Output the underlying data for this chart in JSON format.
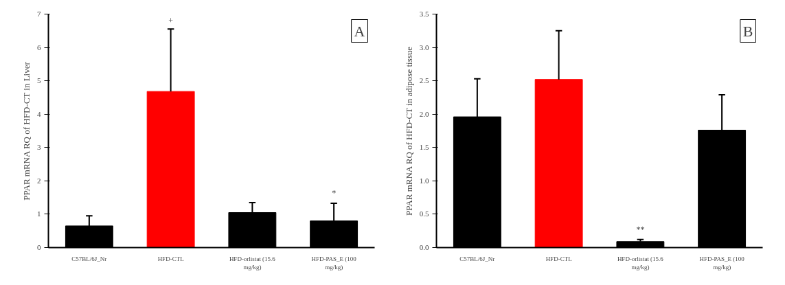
{
  "chart_data": [
    {
      "type": "bar",
      "categories": [
        "C57BL/6J_Nr",
        "HFD-CTL",
        "HFD-orlistat (15.6 mg/kg)",
        "HFD-PAS_E (100 mg/kg)"
      ],
      "values": [
        0.65,
        4.68,
        1.05,
        0.8
      ],
      "colors": [
        "#000000",
        "#ff0000",
        "#000000",
        "#000000"
      ],
      "errors": [
        [
          0.65,
          0.95
        ],
        [
          4.68,
          6.55
        ],
        [
          1.05,
          1.35
        ],
        [
          0.8,
          1.33
        ]
      ],
      "ylabel": "PPAR mRNA RQ of HFD-CT in Liver",
      "ylim": [
        0,
        7
      ],
      "yticks": [
        0,
        1,
        2,
        3,
        4,
        5,
        6,
        7
      ],
      "grid": false,
      "annotations": [
        "A",
        {
          "text": "+",
          "x": "HFD-CTL",
          "y": 6.55
        },
        {
          "text": "*",
          "x": "HFD-PAS_E (100 mg/kg)",
          "y": 1.33
        }
      ]
    },
    {
      "type": "bar",
      "categories": [
        "C57BL/6J_Nr",
        "HFD-CTL",
        "HFD-orlistat (15.6 mg/kg)",
        "HFD-PAS_E (100 mg/kg)"
      ],
      "values": [
        1.96,
        2.52,
        0.09,
        1.76
      ],
      "colors": [
        "#000000",
        "#ff0000",
        "#000000",
        "#000000"
      ],
      "errors": [
        [
          1.96,
          2.53
        ],
        [
          2.52,
          3.25
        ],
        [
          0.09,
          0.12
        ],
        [
          1.76,
          2.29
        ]
      ],
      "ylabel": "PPAR mRNA RQ of HFD-CT in adipose tissue",
      "ylim": [
        0,
        3.5
      ],
      "yticks": [
        {
          "value": 0,
          "label": "0.0"
        },
        0.5,
        {
          "value": 1,
          "label": "1.0"
        },
        1.5,
        {
          "value": 2,
          "label": "2.0"
        },
        2.5,
        {
          "value": 3,
          "label": "3.0"
        },
        3.5
      ],
      "grid": false,
      "annotations": [
        "B",
        {
          "text": "**",
          "x": "HFD-orlistat (15.6 mg/kg)",
          "y": 0.12
        }
      ]
    }
  ]
}
